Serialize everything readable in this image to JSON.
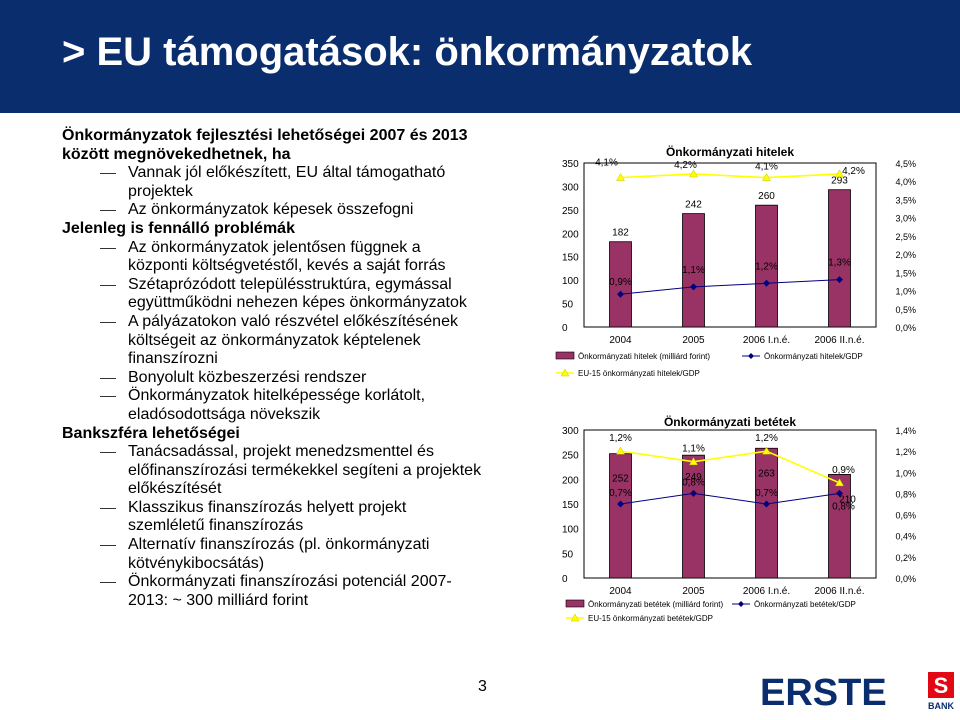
{
  "header": {
    "title": "> EU támogatások: önkormányzatok",
    "bg_color": "#0a2d6e"
  },
  "text": {
    "heading1": "Önkormányzatok fejlesztési lehetőségei 2007 és 2013 között megnövekedhetnek, ha",
    "bullets1": [
      "Vannak jól előkészített, EU által támogatható projektek",
      "Az önkormányzatok képesek összefogni"
    ],
    "heading2": "Jelenleg is fennálló problémák",
    "bullets2": [
      "Az önkormányzatok jelentősen függnek a központi költségvetéstől, kevés a saját forrás",
      "Szétaprózódott településstruktúra, egymással együttműködni nehezen képes önkormányzatok",
      "A pályázatokon való részvétel előkészítésének költségeit az önkormányzatok képtelenek finanszírozni",
      "Bonyolult közbeszerzési rendszer",
      "Önkormányzatok hitelképessége korlátolt, eladósodottsága növekszik"
    ],
    "heading3": "Bankszféra lehetőségei",
    "bullets3": [
      "Tanácsadással, projekt menedzsmenttel és előfinanszírozási termékekkel segíteni a projektek előkészítését",
      "Klasszikus finanszírozás helyett projekt szemléletű finanszírozás",
      "Alternatív finanszírozás (pl. önkormányzati kötvénykibocsátás)",
      "Önkormányzati finanszírozási potenciál 2007-2013: ~ 300 milliárd forint"
    ]
  },
  "page_number": "3",
  "logo": {
    "text": "ERSTE",
    "sub": "BANK",
    "color": "#0a2d6e",
    "accent": "#e30613"
  },
  "chart_data": [
    {
      "type": "bar",
      "title": "Önkormányzati hitelek",
      "categories": [
        "2004",
        "2005",
        "2006 I.n.é.",
        "2006 II.n.é."
      ],
      "ylim": [
        0,
        350
      ],
      "y_ticks": [
        "0",
        "50",
        "100",
        "150",
        "200",
        "250",
        "300",
        "350"
      ],
      "y2lim": [
        0,
        4.5
      ],
      "y2_ticks": [
        "0,0%",
        "0,5%",
        "1,0%",
        "1,5%",
        "2,0%",
        "2,5%",
        "3,0%",
        "3,5%",
        "4,0%",
        "4,5%"
      ],
      "series": [
        {
          "name": "Önkormányzati hitelek (milliárd forint)",
          "kind": "bar",
          "color": "#993366",
          "values": [
            182,
            242,
            260,
            293
          ],
          "labels": [
            "182",
            "242",
            "260",
            "293"
          ]
        },
        {
          "name": "Önkormányzati hitelek/GDP",
          "kind": "line",
          "axis": "right",
          "color": "#000080",
          "values": [
            0.9,
            1.1,
            1.2,
            1.3
          ],
          "labels": [
            "0,9%",
            "1,1%",
            "1,2%",
            "1,3%"
          ]
        },
        {
          "name": "EU-15 önkormányzati hitelek/GDP",
          "kind": "line",
          "axis": "right",
          "color": "#ffff00",
          "values": [
            4.1,
            4.2,
            4.1,
            4.2
          ],
          "labels": [
            "4,1%",
            "4,2%",
            "4,1%",
            "4,2%"
          ]
        }
      ]
    },
    {
      "type": "bar",
      "title": "Önkormányzati betétek",
      "categories": [
        "2004",
        "2005",
        "2006 I.n.é.",
        "2006 II.n.é."
      ],
      "ylim": [
        0,
        300
      ],
      "y_ticks": [
        "0",
        "50",
        "100",
        "150",
        "200",
        "250",
        "300"
      ],
      "y2lim": [
        0,
        1.4
      ],
      "y2_ticks": [
        "0,0%",
        "0,2%",
        "0,4%",
        "0,6%",
        "0,8%",
        "1,0%",
        "1,2%",
        "1,4%"
      ],
      "series": [
        {
          "name": "Önkormányzati betétek (milliárd forint)",
          "kind": "bar",
          "color": "#993366",
          "values": [
            252,
            249,
            263,
            210
          ],
          "labels": [
            "252",
            "249",
            "263",
            "210"
          ]
        },
        {
          "name": "Önkormányzati betétek/GDP",
          "kind": "line",
          "axis": "right",
          "color": "#000080",
          "values": [
            0.7,
            0.8,
            0.7,
            0.8
          ],
          "labels": [
            "0,7%",
            "0,8%",
            "0,7%",
            "0,8%"
          ]
        },
        {
          "name": "EU-15 önkormányzati betétek/GDP",
          "kind": "line",
          "axis": "right",
          "color": "#ffff00",
          "values": [
            1.2,
            1.1,
            1.2,
            0.9
          ],
          "labels": [
            "1,2%",
            "1,1%",
            "1,2%",
            "0,9%"
          ]
        }
      ]
    }
  ]
}
